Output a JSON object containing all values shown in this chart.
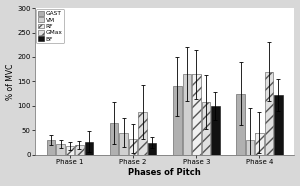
{
  "phases": [
    "Phase 1",
    "Phase 2",
    "Phase 3",
    "Phase 4"
  ],
  "muscles": [
    "GAST",
    "VM",
    "RF",
    "GMax",
    "BF"
  ],
  "values": [
    [
      30,
      22,
      18,
      20,
      27
    ],
    [
      65,
      45,
      33,
      87,
      25
    ],
    [
      140,
      165,
      165,
      108,
      100
    ],
    [
      125,
      30,
      45,
      170,
      122
    ]
  ],
  "errors": [
    [
      10,
      8,
      8,
      8,
      22
    ],
    [
      42,
      30,
      30,
      55,
      12
    ],
    [
      60,
      55,
      50,
      55,
      28
    ],
    [
      65,
      65,
      42,
      60,
      32
    ]
  ],
  "bar_colors": [
    "#b0b0b0",
    "#d0d0d0",
    "#f0f0f0",
    "#e0e0e0",
    "#111111"
  ],
  "bar_hatches": [
    "",
    "",
    "///",
    "///",
    ""
  ],
  "bar_edgecolors": [
    "#555555",
    "#555555",
    "#555555",
    "#555555",
    "#111111"
  ],
  "ylabel": "% of MVC",
  "xlabel": "Phases of Pitch",
  "ylim": [
    0,
    300
  ],
  "yticks": [
    0,
    50,
    100,
    150,
    200,
    250,
    300
  ],
  "background_color": "#d8d8d8",
  "plot_bg": "#ffffff"
}
